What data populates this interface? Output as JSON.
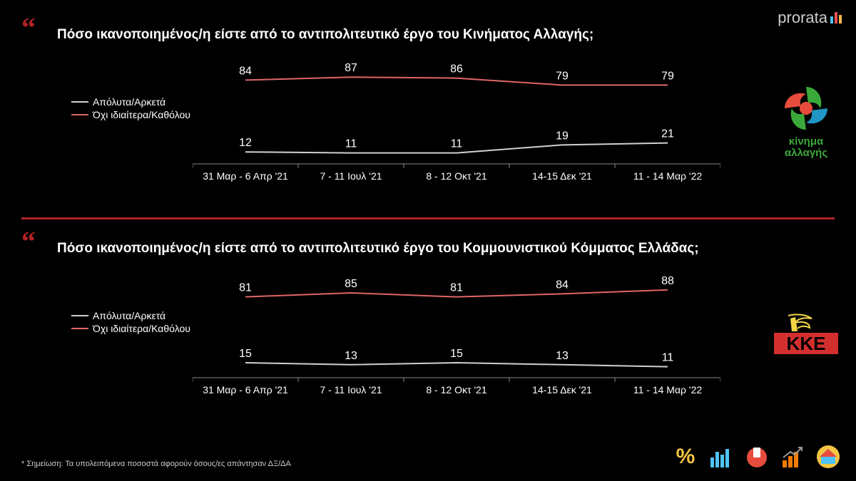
{
  "brand": {
    "name": "prorata",
    "bar_colors": [
      "#4fc3f7",
      "#ef5350",
      "#ffb74d"
    ]
  },
  "panels": [
    {
      "question": "Πόσο ικανοποιημένος/η είστε από το αντιπολιτευτικό έργο του Κινήματος Αλλαγής;",
      "party_label_line1": "κίνημα",
      "party_label_line2": "αλλαγής",
      "party_label_color": "#3aa83a",
      "chart": {
        "type": "line",
        "categories": [
          "31 Μαρ - 6 Απρ '21",
          "7 - 11 Ιουλ '21",
          "8 - 12 Οκτ '21",
          "14-15 Δεκ '21",
          "11 - 14 Μαρ '22"
        ],
        "series": [
          {
            "name": "Απόλυτα/Αρκετά",
            "color": "#d0d0d0",
            "values": [
              12,
              11,
              11,
              19,
              21
            ]
          },
          {
            "name": "Όχι ιδιαίτερα/Καθόλου",
            "color": "#e06666",
            "values": [
              84,
              87,
              86,
              79,
              79
            ]
          }
        ],
        "ylim": [
          0,
          100
        ],
        "axis_color": "#888888",
        "label_fontsize": 14,
        "value_fontsize": 16,
        "value_color": "#ffffff",
        "background": "#000000"
      }
    },
    {
      "question": "Πόσο ικανοποιημένος/η είστε από το αντιπολιτευτικό έργο του Κομμουνιστικού Κόμματος Ελλάδας;",
      "party_label_line1": "ΚΚΕ",
      "party_label_line2": "",
      "party_label_color": "#d32f2f",
      "chart": {
        "type": "line",
        "categories": [
          "31 Μαρ - 6 Απρ '21",
          "7 - 11 Ιουλ '21",
          "8 - 12 Οκτ '21",
          "14-15 Δεκ '21",
          "11 - 14 Μαρ '22"
        ],
        "series": [
          {
            "name": "Απόλυτα/Αρκετά",
            "color": "#d0d0d0",
            "values": [
              15,
              13,
              15,
              13,
              11
            ]
          },
          {
            "name": "Όχι ιδιαίτερα/Καθόλου",
            "color": "#e06666",
            "values": [
              81,
              85,
              81,
              84,
              88
            ]
          }
        ],
        "ylim": [
          0,
          100
        ],
        "axis_color": "#888888",
        "label_fontsize": 14,
        "value_fontsize": 16,
        "value_color": "#ffffff",
        "background": "#000000"
      }
    }
  ],
  "legend_labels": {
    "pos": "Απόλυτα/Αρκετά",
    "neg": "Όχι ιδιαίτερα/Καθόλου"
  },
  "legend_colors": {
    "pos": "#d0d0d0",
    "neg": "#e06666"
  },
  "footer_note": "* Σημείωση: Τα  υπολειπόμενα ποσοστά αφορούν όσους/ες απάντησαν ΔΞ/ΔΑ"
}
